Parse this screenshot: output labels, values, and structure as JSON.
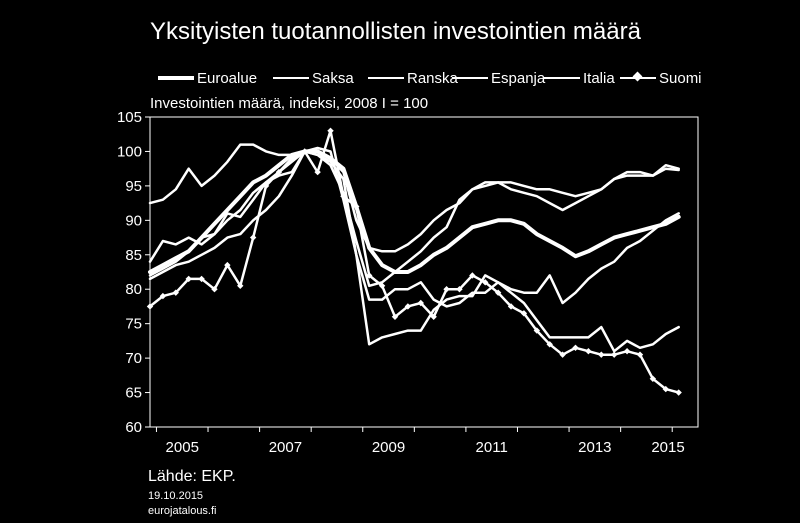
{
  "title": "Yksityisten tuotannollisten investointien määrä",
  "subtitle": "Investointien määrä, indeksi, 2008 I = 100",
  "source": "Lähde: EKP.",
  "date": "19.10.2015",
  "site": "eurojatalous.fi",
  "colors": {
    "background": "#000000",
    "foreground": "#ffffff"
  },
  "chart_data": {
    "type": "line",
    "title": "Yksityisten tuotannollisten investointien määrä",
    "ylabel": "Investointien määrä, indeksi, 2008 I = 100",
    "xlabel": "",
    "xlim": [
      2004.875,
      2015.5
    ],
    "ylim": [
      60,
      105
    ],
    "yticks": [
      60,
      65,
      70,
      75,
      80,
      85,
      90,
      95,
      100,
      105
    ],
    "xticks": [
      "2005",
      "2007",
      "2009",
      "2011",
      "2013",
      "2015"
    ],
    "grid": false,
    "legend_position": "top",
    "x": [
      2004.875,
      2005.125,
      2005.375,
      2005.625,
      2005.875,
      2006.125,
      2006.375,
      2006.625,
      2006.875,
      2007.125,
      2007.375,
      2007.625,
      2007.875,
      2008.125,
      2008.375,
      2008.625,
      2008.875,
      2009.125,
      2009.375,
      2009.625,
      2009.875,
      2010.125,
      2010.375,
      2010.625,
      2010.875,
      2011.125,
      2011.375,
      2011.625,
      2011.875,
      2012.125,
      2012.375,
      2012.625,
      2012.875,
      2013.125,
      2013.375,
      2013.625,
      2013.875,
      2014.125,
      2014.375,
      2014.625,
      2014.875,
      2015.125
    ],
    "series": [
      {
        "name": "Euroalue",
        "width": 4,
        "marker": "none",
        "values": [
          82.5,
          83.5,
          84.5,
          85.5,
          87.5,
          89.5,
          91.5,
          93.5,
          95.5,
          96.5,
          98.0,
          99.5,
          100.0,
          100.0,
          99.0,
          97.5,
          92.0,
          86.0,
          83.5,
          82.5,
          82.5,
          83.5,
          85.0,
          86.0,
          87.5,
          89.0,
          89.5,
          90.0,
          90.0,
          89.5,
          88.0,
          87.0,
          86.0,
          84.8,
          85.5,
          86.5,
          87.5,
          88.0,
          88.5,
          89.0,
          89.5,
          90.5
        ]
      },
      {
        "name": "Saksa",
        "width": 2.5,
        "marker": "none",
        "values": [
          82.0,
          83.0,
          84.0,
          85.5,
          87.5,
          88.0,
          90.0,
          91.5,
          94.0,
          95.5,
          97.0,
          98.5,
          100.0,
          99.5,
          98.0,
          94.0,
          87.0,
          80.5,
          81.0,
          82.5,
          84.0,
          85.5,
          87.5,
          89.0,
          93.0,
          94.5,
          95.0,
          95.5,
          94.5,
          94.0,
          93.5,
          92.5,
          91.5,
          92.5,
          93.5,
          94.5,
          96.0,
          96.5,
          96.5,
          96.5,
          97.5,
          97.3
        ]
      },
      {
        "name": "Ranska",
        "width": 2.5,
        "marker": "none",
        "values": [
          92.5,
          93.0,
          94.5,
          97.5,
          95.0,
          96.5,
          98.5,
          101.0,
          101.0,
          100.0,
          99.5,
          99.5,
          100.0,
          100.0,
          99.0,
          97.0,
          90.0,
          86.0,
          85.5,
          85.5,
          86.5,
          88.0,
          90.0,
          91.5,
          92.5,
          94.5,
          95.5,
          95.5,
          95.5,
          95.0,
          94.5,
          94.5,
          94.0,
          93.5,
          94.0,
          94.5,
          96.0,
          97.0,
          97.0,
          96.5,
          98.0,
          97.5
        ]
      },
      {
        "name": "Espanja",
        "width": 2.5,
        "marker": "none",
        "values": [
          84.0,
          87.0,
          86.5,
          87.5,
          86.5,
          88.0,
          91.0,
          90.5,
          93.0,
          95.5,
          96.5,
          97.0,
          100.0,
          100.5,
          100.0,
          93.0,
          85.0,
          78.5,
          78.5,
          80.0,
          80.0,
          81.0,
          78.5,
          77.5,
          78.0,
          79.5,
          79.5,
          81.0,
          79.5,
          78.0,
          75.5,
          73.0,
          73.0,
          73.0,
          73.0,
          74.5,
          71.0,
          72.5,
          71.5,
          72.0,
          73.5,
          74.5
        ]
      },
      {
        "name": "Italia",
        "width": 2.5,
        "marker": "none",
        "values": [
          81.5,
          82.5,
          83.5,
          84.0,
          85.0,
          86.0,
          87.5,
          88.0,
          90.0,
          91.5,
          93.5,
          96.5,
          100.0,
          99.5,
          98.5,
          96.0,
          85.0,
          72.0,
          73.0,
          73.5,
          74.0,
          74.0,
          77.0,
          78.5,
          79.0,
          79.0,
          82.0,
          81.0,
          80.0,
          79.5,
          79.5,
          82.0,
          78.0,
          79.5,
          81.5,
          83.0,
          84.0,
          86.0,
          87.0,
          88.5,
          90.0,
          91.0
        ]
      },
      {
        "name": "Suomi",
        "width": 2.5,
        "marker": "diamond",
        "values": [
          77.5,
          79.0,
          79.5,
          81.5,
          81.5,
          80.0,
          83.5,
          80.5,
          87.5,
          95.0,
          97.0,
          99.0,
          100.0,
          97.0,
          103.0,
          93.5,
          92.0,
          82.0,
          80.5,
          76.0,
          77.5,
          78.0,
          76.0,
          80.0,
          80.0,
          82.0,
          81.0,
          79.5,
          77.5,
          76.5,
          74.0,
          72.0,
          70.5,
          71.5,
          71.0,
          70.5,
          70.5,
          71.0,
          70.5,
          67.0,
          65.5,
          65.0
        ]
      }
    ]
  },
  "legend_labels": [
    "Euroalue",
    "Saksa",
    "Ranska",
    "Espanja",
    "Italia",
    "Suomi"
  ]
}
